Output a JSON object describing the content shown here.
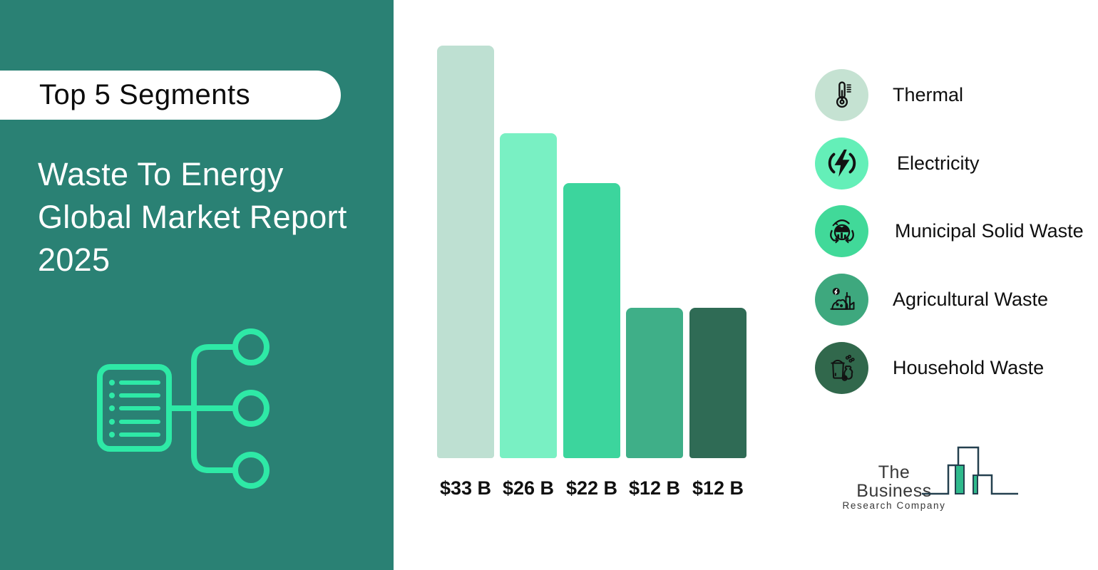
{
  "panel": {
    "badge": "Top 5 Segments",
    "title_lines": [
      "Waste To Energy",
      "Global Market Report",
      "2025"
    ],
    "bg_color": "#2A8174",
    "accent_icon_color": "#2EE9A6"
  },
  "chart_data": {
    "type": "bar",
    "title": "Top 5 Segments — Waste To Energy Global Market Report 2025",
    "categories": [
      "Thermal",
      "Electricity",
      "Municipal Solid Waste",
      "Agricultural Waste",
      "Household Waste"
    ],
    "values": [
      33,
      26,
      22,
      12,
      12
    ],
    "value_labels": [
      "$33 B",
      "$26 B",
      "$22 B",
      "$12 B",
      "$12 B"
    ],
    "bar_colors": [
      "#BEE0D2",
      "#79F0C3",
      "#3CD59D",
      "#3FAF88",
      "#2F6B55"
    ],
    "xlabel": "",
    "ylabel": "",
    "ylim": [
      0,
      33
    ],
    "grid": false,
    "legend_position": "right"
  },
  "legend": {
    "items": [
      {
        "label": "Thermal",
        "icon": "thermometer-icon",
        "circle_color": "#C5E2D2"
      },
      {
        "label": "Electricity",
        "icon": "lightning-icon",
        "circle_color": "#64EFB8"
      },
      {
        "label": "Municipal Solid Waste",
        "icon": "recycle-globe-icon",
        "circle_color": "#41D999"
      },
      {
        "label": "Agricultural Waste",
        "icon": "farm-waste-icon",
        "circle_color": "#3EA87E"
      },
      {
        "label": "Household Waste",
        "icon": "trash-bag-icon",
        "circle_color": "#31684C"
      }
    ]
  },
  "logo": {
    "line1": "The Business",
    "line2": "Research Company",
    "outline_color": "#24404F",
    "fill_color": "#2FBA8C"
  }
}
